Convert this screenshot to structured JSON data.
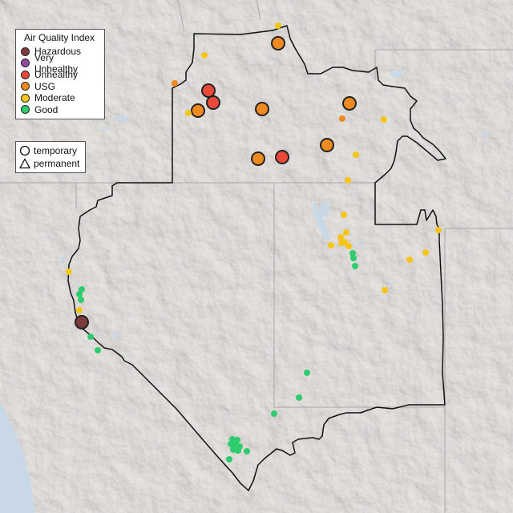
{
  "legend": {
    "title": "Air Quality Index",
    "categories": [
      {
        "label": "Hazardous",
        "color": "#7e3b3b"
      },
      {
        "label": "Very Unhealthy",
        "color": "#8f4ba0"
      },
      {
        "label": "Unhealthy",
        "color": "#e84a3a"
      },
      {
        "label": "USG",
        "color": "#ef8a22"
      },
      {
        "label": "Moderate",
        "color": "#f5c518"
      },
      {
        "label": "Good",
        "color": "#2fcc6e"
      }
    ],
    "types": [
      {
        "label": "temporary",
        "symbol": "circle-icon"
      },
      {
        "label": "permanent",
        "symbol": "triangle-icon"
      }
    ]
  }
}
